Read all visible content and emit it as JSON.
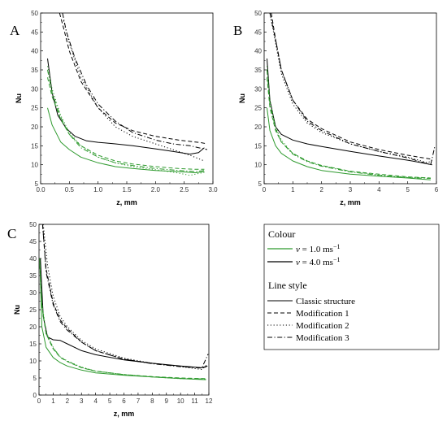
{
  "colors": {
    "green": "#2e9a2e",
    "black": "#000000"
  },
  "styles": {
    "classic": "",
    "mod1": "5,3",
    "mod2": "1.2,2.6",
    "mod3": "6,2.5,1.2,2.5"
  },
  "legend": {
    "colour_heading": "Colour",
    "colour_entries": [
      {
        "label_pre": "v",
        "label_post": " = 1.0 ms",
        "sup": "−1",
        "color": "green"
      },
      {
        "label_pre": "v",
        "label_post": " = 4.0 ms",
        "sup": "−1",
        "color": "black"
      }
    ],
    "style_heading": "Line style",
    "style_entries": [
      {
        "label": "Classic structure",
        "style": "classic"
      },
      {
        "label": "Modification 1",
        "style": "mod1"
      },
      {
        "label": "Modification 2",
        "style": "mod2"
      },
      {
        "label": "Modification 3",
        "style": "mod3"
      }
    ]
  },
  "chart_data": [
    {
      "type": "line",
      "panel": "A",
      "xlabel": "z, mm",
      "ylabel": "Nu",
      "xlim": [
        0,
        3
      ],
      "ylim": [
        5,
        50
      ],
      "xticks": [
        "0.0",
        "0.5",
        "1.0",
        "1.5",
        "2.0",
        "2.5",
        "3.0"
      ],
      "yticks": [
        "5",
        "10",
        "15",
        "20",
        "25",
        "30",
        "35",
        "40",
        "45",
        "50"
      ],
      "series": [
        {
          "color": "black",
          "style": "classic",
          "x": [
            0.12,
            0.2,
            0.3,
            0.45,
            0.6,
            0.8,
            1.0,
            1.3,
            1.6,
            2.0,
            2.3,
            2.6,
            2.75,
            2.85
          ],
          "y": [
            38,
            29,
            23,
            19.5,
            17.5,
            16.3,
            15.9,
            15.5,
            15,
            14.2,
            13.5,
            12.8,
            13.2,
            14.5
          ]
        },
        {
          "color": "black",
          "style": "mod1",
          "x": [
            0.33,
            0.4,
            0.5,
            0.7,
            1.0,
            1.3,
            1.6,
            2.0,
            2.4,
            2.8,
            2.9
          ],
          "y": [
            50,
            46,
            40,
            32,
            25,
            21,
            19,
            17.5,
            16.5,
            15.8,
            15.5
          ]
        },
        {
          "color": "black",
          "style": "mod2",
          "x": [
            0.4,
            0.5,
            0.7,
            1.0,
            1.3,
            1.6,
            2.0,
            2.3,
            2.6,
            2.85
          ],
          "y": [
            48,
            42,
            33,
            25,
            20,
            17.5,
            15.5,
            14,
            12.5,
            11
          ]
        },
        {
          "color": "black",
          "style": "mod3",
          "x": [
            0.38,
            0.45,
            0.6,
            0.8,
            1.0,
            1.3,
            1.6,
            2.0,
            2.3,
            2.6,
            2.75,
            2.9
          ],
          "y": [
            50,
            45,
            38,
            31,
            26,
            21.5,
            18.5,
            16.5,
            15.5,
            15,
            14.5,
            14
          ]
        },
        {
          "color": "green",
          "style": "classic",
          "x": [
            0.12,
            0.2,
            0.35,
            0.5,
            0.7,
            1.0,
            1.3,
            1.6,
            2.0,
            2.4,
            2.7,
            2.85
          ],
          "y": [
            25,
            20.5,
            16,
            14,
            12,
            10.5,
            9.5,
            9,
            8.5,
            8.2,
            7.9,
            8.2
          ]
        },
        {
          "color": "green",
          "style": "mod1",
          "x": [
            0.12,
            0.2,
            0.35,
            0.5,
            0.7,
            1.0,
            1.3,
            1.6,
            2.0,
            2.4,
            2.7,
            2.85
          ],
          "y": [
            33,
            28,
            22,
            18,
            15,
            12.5,
            11,
            10.2,
            9.5,
            9,
            8.8,
            8.8
          ]
        },
        {
          "color": "green",
          "style": "mod2",
          "x": [
            0.12,
            0.2,
            0.35,
            0.5,
            0.7,
            1.0,
            1.3,
            1.6,
            2.0,
            2.4,
            2.6,
            2.85
          ],
          "y": [
            36,
            30,
            23,
            18.5,
            15,
            12,
            10.5,
            9.5,
            8.7,
            7.8,
            7.2,
            8
          ]
        },
        {
          "color": "green",
          "style": "mod3",
          "x": [
            0.12,
            0.2,
            0.35,
            0.5,
            0.7,
            1.0,
            1.3,
            1.6,
            2.0,
            2.4,
            2.7,
            2.85
          ],
          "y": [
            35,
            29,
            22.5,
            18,
            14.5,
            12,
            10.5,
            9.8,
            9,
            8.5,
            8.2,
            8.5
          ]
        }
      ]
    },
    {
      "type": "line",
      "panel": "B",
      "xlabel": "z, mm",
      "ylabel": "Nu",
      "xlim": [
        0,
        6
      ],
      "ylim": [
        5,
        50
      ],
      "xticks": [
        "0",
        "1",
        "2",
        "3",
        "4",
        "5",
        "6"
      ],
      "yticks": [
        "5",
        "10",
        "15",
        "20",
        "25",
        "30",
        "35",
        "40",
        "45",
        "50"
      ],
      "series": [
        {
          "color": "black",
          "style": "classic",
          "x": [
            0.1,
            0.2,
            0.4,
            0.6,
            1.0,
            1.5,
            2.0,
            3.0,
            4.0,
            5.0,
            5.5,
            5.85
          ],
          "y": [
            38,
            27,
            20,
            18,
            16.5,
            15.5,
            14.8,
            13.5,
            12.3,
            11.2,
            10.5,
            10
          ]
        },
        {
          "color": "black",
          "style": "mod1",
          "x": [
            0.25,
            0.4,
            0.6,
            1.0,
            1.5,
            2.0,
            3.0,
            4.0,
            5.0,
            5.8
          ],
          "y": [
            50,
            43,
            35,
            27,
            22,
            19.5,
            16,
            14,
            12.5,
            11.5
          ]
        },
        {
          "color": "black",
          "style": "mod2",
          "x": [
            0.2,
            0.4,
            0.6,
            1.0,
            1.5,
            2.0,
            3.0,
            4.0,
            5.0,
            5.7,
            5.9
          ],
          "y": [
            50,
            42,
            34,
            26,
            21,
            18.5,
            15.5,
            13.5,
            12,
            10.5,
            11.5
          ]
        },
        {
          "color": "black",
          "style": "mod3",
          "x": [
            0.2,
            0.4,
            0.6,
            1.0,
            1.5,
            2.0,
            3.0,
            4.0,
            5.0,
            5.8,
            5.95
          ],
          "y": [
            50,
            43,
            35,
            27,
            21.5,
            19,
            15.5,
            13.5,
            11.8,
            10,
            15
          ]
        },
        {
          "color": "green",
          "style": "classic",
          "x": [
            0.1,
            0.2,
            0.4,
            0.6,
            1.0,
            1.5,
            2.0,
            3.0,
            4.0,
            5.0,
            5.8
          ],
          "y": [
            25,
            19,
            15,
            13,
            11,
            9.5,
            8.5,
            7.5,
            7,
            6.5,
            6
          ]
        },
        {
          "color": "green",
          "style": "mod1",
          "x": [
            0.1,
            0.2,
            0.4,
            0.6,
            1.0,
            1.5,
            2.0,
            3.0,
            4.0,
            5.0,
            5.8
          ],
          "y": [
            33,
            25,
            19,
            16,
            13,
            11,
            9.8,
            8.3,
            7.5,
            6.8,
            6.5
          ]
        },
        {
          "color": "green",
          "style": "mod2",
          "x": [
            0.1,
            0.2,
            0.4,
            0.6,
            1.0,
            1.5,
            2.0,
            3.0,
            4.0,
            5.0,
            5.8
          ],
          "y": [
            36,
            27,
            20,
            16.5,
            13,
            11,
            9.8,
            8.2,
            7.3,
            6.7,
            6.5
          ]
        },
        {
          "color": "green",
          "style": "mod3",
          "x": [
            0.1,
            0.2,
            0.4,
            0.6,
            1.0,
            1.5,
            2.0,
            3.0,
            4.0,
            5.0,
            5.8
          ],
          "y": [
            35,
            26,
            19.5,
            16,
            12.8,
            10.8,
            9.6,
            8.1,
            7.2,
            6.6,
            6.4
          ]
        }
      ]
    },
    {
      "type": "line",
      "panel": "C",
      "xlabel": "z, mm",
      "ylabel": "Nu",
      "xlim": [
        0,
        12
      ],
      "ylim": [
        0,
        50
      ],
      "xticks": [
        "0",
        "1",
        "2",
        "3",
        "4",
        "5",
        "6",
        "7",
        "8",
        "9",
        "10",
        "11",
        "12"
      ],
      "yticks": [
        "0",
        "5",
        "10",
        "15",
        "20",
        "25",
        "30",
        "35",
        "40",
        "45",
        "50"
      ],
      "series": [
        {
          "color": "black",
          "style": "classic",
          "x": [
            0.1,
            0.3,
            0.6,
            1.0,
            1.5,
            2.0,
            3.0,
            4.0,
            6.0,
            8.0,
            10.0,
            11.5,
            11.9
          ],
          "y": [
            40,
            23,
            17,
            16.2,
            16,
            15,
            13,
            11.8,
            10.3,
            9.3,
            8.5,
            8,
            8.5
          ]
        },
        {
          "color": "black",
          "style": "mod1",
          "x": [
            0.25,
            0.5,
            1.0,
            1.5,
            2.0,
            3.0,
            4.0,
            6.0,
            8.0,
            10.0,
            11.5,
            11.9
          ],
          "y": [
            50,
            37,
            27,
            22,
            19.5,
            15.5,
            13,
            10.5,
            9.3,
            8.4,
            8,
            8.3
          ]
        },
        {
          "color": "black",
          "style": "mod2",
          "x": [
            0.3,
            0.6,
            1.0,
            1.5,
            2.0,
            3.0,
            4.0,
            6.0,
            8.0,
            10.0,
            11.5,
            11.9
          ],
          "y": [
            50,
            38,
            29,
            23,
            20,
            16,
            13.5,
            10.8,
            9.3,
            8.3,
            7.5,
            9
          ]
        },
        {
          "color": "black",
          "style": "mod3",
          "x": [
            0.25,
            0.5,
            1.0,
            1.5,
            2.0,
            3.0,
            4.0,
            6.0,
            8.0,
            10.0,
            11.5,
            11.95
          ],
          "y": [
            50,
            36,
            26.5,
            21.5,
            19,
            15.5,
            13,
            10.5,
            9.2,
            8.3,
            7.9,
            12
          ]
        },
        {
          "color": "green",
          "style": "classic",
          "x": [
            0.05,
            0.2,
            0.5,
            1.0,
            1.5,
            2.0,
            3.0,
            4.0,
            6.0,
            8.0,
            10.0,
            11.8
          ],
          "y": [
            40,
            20,
            14,
            11,
            9.5,
            8.5,
            7.3,
            6.5,
            5.8,
            5.3,
            4.8,
            4.5
          ]
        },
        {
          "color": "green",
          "style": "mod1",
          "x": [
            0.05,
            0.2,
            0.5,
            1.0,
            1.5,
            2.0,
            3.0,
            4.0,
            6.0,
            8.0,
            10.0,
            11.8
          ],
          "y": [
            38,
            26,
            18,
            13.5,
            11,
            9.8,
            8,
            7,
            6,
            5.4,
            5,
            4.8
          ]
        },
        {
          "color": "green",
          "style": "mod2",
          "x": [
            0.05,
            0.2,
            0.5,
            1.0,
            1.5,
            2.0,
            3.0,
            4.0,
            6.0,
            8.0,
            10.0,
            11.8
          ],
          "y": [
            39,
            27,
            18.5,
            14,
            11.2,
            10,
            8.2,
            7,
            6,
            5.3,
            4.8,
            4.6
          ]
        },
        {
          "color": "green",
          "style": "mod3",
          "x": [
            0.05,
            0.2,
            0.5,
            1.0,
            1.5,
            2.0,
            3.0,
            4.0,
            6.0,
            8.0,
            10.0,
            11.8
          ],
          "y": [
            38.5,
            26.5,
            18,
            13.8,
            11.1,
            9.9,
            8.1,
            7,
            6,
            5.3,
            4.9,
            4.7
          ]
        }
      ]
    }
  ]
}
